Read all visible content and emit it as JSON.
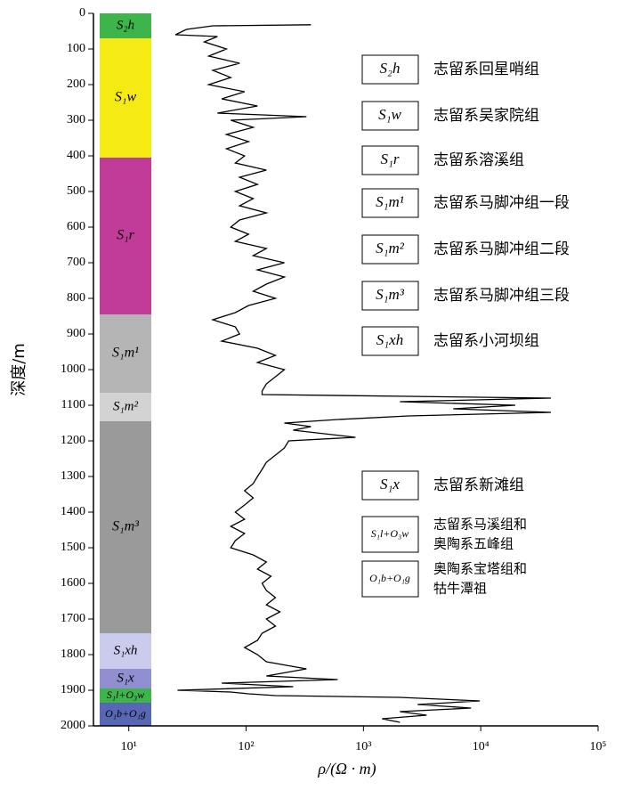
{
  "chart_data": {
    "type": "well-log",
    "ylabel": "深度/m",
    "xlabel": "ρ/(Ω · m)",
    "ylim": [
      0,
      2000
    ],
    "yticks": [
      0,
      100,
      200,
      300,
      400,
      500,
      600,
      700,
      800,
      900,
      1000,
      1100,
      1200,
      1300,
      1400,
      1500,
      1600,
      1700,
      1800,
      1900,
      2000
    ],
    "xlim": [
      5,
      100000
    ],
    "xscale": "log",
    "xticks": [
      {
        "value": 10,
        "label": "10¹"
      },
      {
        "value": 100,
        "label": "10²"
      },
      {
        "value": 1000,
        "label": "10³"
      },
      {
        "value": 10000,
        "label": "10⁴"
      },
      {
        "value": 100000,
        "label": "10⁵"
      }
    ],
    "strata": [
      {
        "label": "S₂h",
        "top": 0,
        "bottom": 70,
        "color": "#3db54a"
      },
      {
        "label": "S₁w",
        "top": 70,
        "bottom": 405,
        "color": "#f5ea14"
      },
      {
        "label": "S₁r",
        "top": 405,
        "bottom": 845,
        "color": "#c13c99"
      },
      {
        "label": "S₁m¹",
        "top": 845,
        "bottom": 1065,
        "color": "#b5b5b5"
      },
      {
        "label": "S₁m²",
        "top": 1065,
        "bottom": 1145,
        "color": "#d3d3d3"
      },
      {
        "label": "S₁m³",
        "top": 1145,
        "bottom": 1740,
        "color": "#9a9a9a"
      },
      {
        "label": "S₁xh",
        "top": 1740,
        "bottom": 1840,
        "color": "#cbcbee"
      },
      {
        "label": "S₁x",
        "top": 1840,
        "bottom": 1895,
        "color": "#8f8fd2"
      },
      {
        "label": "S₁l+O₃w",
        "top": 1895,
        "bottom": 1935,
        "color": "#3db54a"
      },
      {
        "label": "O₁b+O₁g",
        "top": 1935,
        "bottom": 2000,
        "color": "#5867b5"
      }
    ],
    "legend": [
      {
        "label": "S₂h",
        "lines": [
          "志留系回星哨组"
        ]
      },
      {
        "label": "S₁w",
        "lines": [
          "志留系吴家院组"
        ]
      },
      {
        "label": "S₁r",
        "lines": [
          "志留系溶溪组"
        ]
      },
      {
        "label": "S₁m¹",
        "lines": [
          "志留系马脚冲组一段"
        ]
      },
      {
        "label": "S₁m²",
        "lines": [
          "志留系马脚冲组二段"
        ]
      },
      {
        "label": "S₁m³",
        "lines": [
          "志留系马脚冲组三段"
        ]
      },
      {
        "label": "S₁xh",
        "lines": [
          "志留系小河坝组"
        ]
      },
      {
        "label": "S₁x",
        "lines": [
          "志留系新滩组"
        ]
      },
      {
        "label": "S₁l+O₃w",
        "lines": [
          "志留系马溪组和",
          "奥陶系五峰组"
        ]
      },
      {
        "label": "O₁b+O₁g",
        "lines": [
          "奥陶系宝塔组和",
          "牯牛潭祖"
        ]
      }
    ],
    "color": "#000000",
    "depth": [
      32,
      35,
      45,
      60,
      65,
      80,
      100,
      120,
      140,
      160,
      180,
      200,
      220,
      240,
      260,
      280,
      290,
      300,
      320,
      340,
      360,
      380,
      400,
      420,
      440,
      460,
      480,
      500,
      520,
      540,
      560,
      580,
      600,
      620,
      640,
      660,
      680,
      700,
      720,
      740,
      760,
      780,
      800,
      820,
      840,
      860,
      880,
      900,
      920,
      940,
      960,
      980,
      1000,
      1020,
      1040,
      1060,
      1070,
      1075,
      1080,
      1090,
      1100,
      1110,
      1120,
      1130,
      1140,
      1150,
      1160,
      1170,
      1190,
      1200,
      1220,
      1240,
      1260,
      1280,
      1300,
      1320,
      1340,
      1360,
      1380,
      1400,
      1420,
      1440,
      1460,
      1480,
      1500,
      1520,
      1540,
      1560,
      1580,
      1600,
      1620,
      1640,
      1660,
      1680,
      1700,
      1720,
      1740,
      1760,
      1780,
      1800,
      1820,
      1840,
      1860,
      1870,
      1880,
      1890,
      1900,
      1905,
      1910,
      1915,
      1920,
      1930,
      1940,
      1950,
      1960,
      1970,
      1980,
      1990
    ],
    "resistivity": [
      357,
      52,
      31,
      25,
      57,
      44,
      68,
      48,
      88,
      52,
      74,
      48,
      97,
      62,
      125,
      57,
      327,
      74,
      115,
      68,
      105,
      68,
      97,
      81,
      149,
      88,
      125,
      81,
      115,
      88,
      149,
      88,
      74,
      105,
      81,
      149,
      115,
      212,
      125,
      212,
      149,
      115,
      178,
      105,
      81,
      52,
      81,
      88,
      62,
      125,
      178,
      125,
      212,
      178,
      149,
      137,
      137,
      2434,
      39600,
      2046,
      19700,
      5821,
      39600,
      2434,
      603,
      212,
      357,
      252,
      855,
      231,
      212,
      178,
      149,
      137,
      125,
      115,
      97,
      115,
      97,
      81,
      97,
      74,
      97,
      81,
      74,
      115,
      149,
      125,
      163,
      137,
      149,
      178,
      149,
      194,
      149,
      178,
      137,
      125,
      97,
      125,
      149,
      327,
      149,
      603,
      62,
      252,
      26,
      74,
      105,
      178,
      2046,
      9820,
      2897,
      8260,
      2046,
      3451,
      1442,
      2046
    ]
  }
}
